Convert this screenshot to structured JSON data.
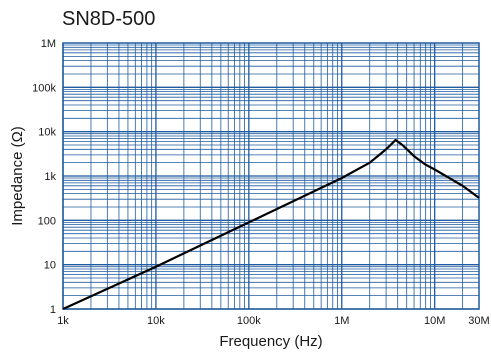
{
  "chart_data": {
    "type": "line",
    "title": "SN8D-500",
    "xlabel": "Frequency (Hz)",
    "ylabel": "Impedance (Ω)",
    "x_scale": "log",
    "y_scale": "log",
    "xlim": [
      1000,
      30000000
    ],
    "ylim": [
      1,
      1000000
    ],
    "grid": true,
    "x_ticks": [
      {
        "value": 1000,
        "label": "1k"
      },
      {
        "value": 10000,
        "label": "10k"
      },
      {
        "value": 100000,
        "label": "100k"
      },
      {
        "value": 1000000,
        "label": "1M"
      },
      {
        "value": 10000000,
        "label": "10M"
      },
      {
        "value": 30000000,
        "label": "30M"
      }
    ],
    "y_ticks": [
      {
        "value": 1,
        "label": "1"
      },
      {
        "value": 10,
        "label": "10"
      },
      {
        "value": 100,
        "label": "100"
      },
      {
        "value": 1000,
        "label": "1k"
      },
      {
        "value": 10000,
        "label": "10k"
      },
      {
        "value": 100000,
        "label": "100k"
      },
      {
        "value": 1000000,
        "label": "1M"
      }
    ],
    "colors": {
      "grid": "#1f5b9e",
      "line": "#000000"
    },
    "series": [
      {
        "x": [
          1000,
          10000,
          100000,
          1000000,
          2000000,
          3000000,
          3800000,
          4500000,
          6000000,
          8000000,
          10000000,
          20000000,
          30000000
        ],
        "y": [
          1,
          9,
          90,
          900,
          2000,
          4000,
          6500,
          5000,
          2800,
          1800,
          1400,
          600,
          320
        ]
      }
    ]
  }
}
